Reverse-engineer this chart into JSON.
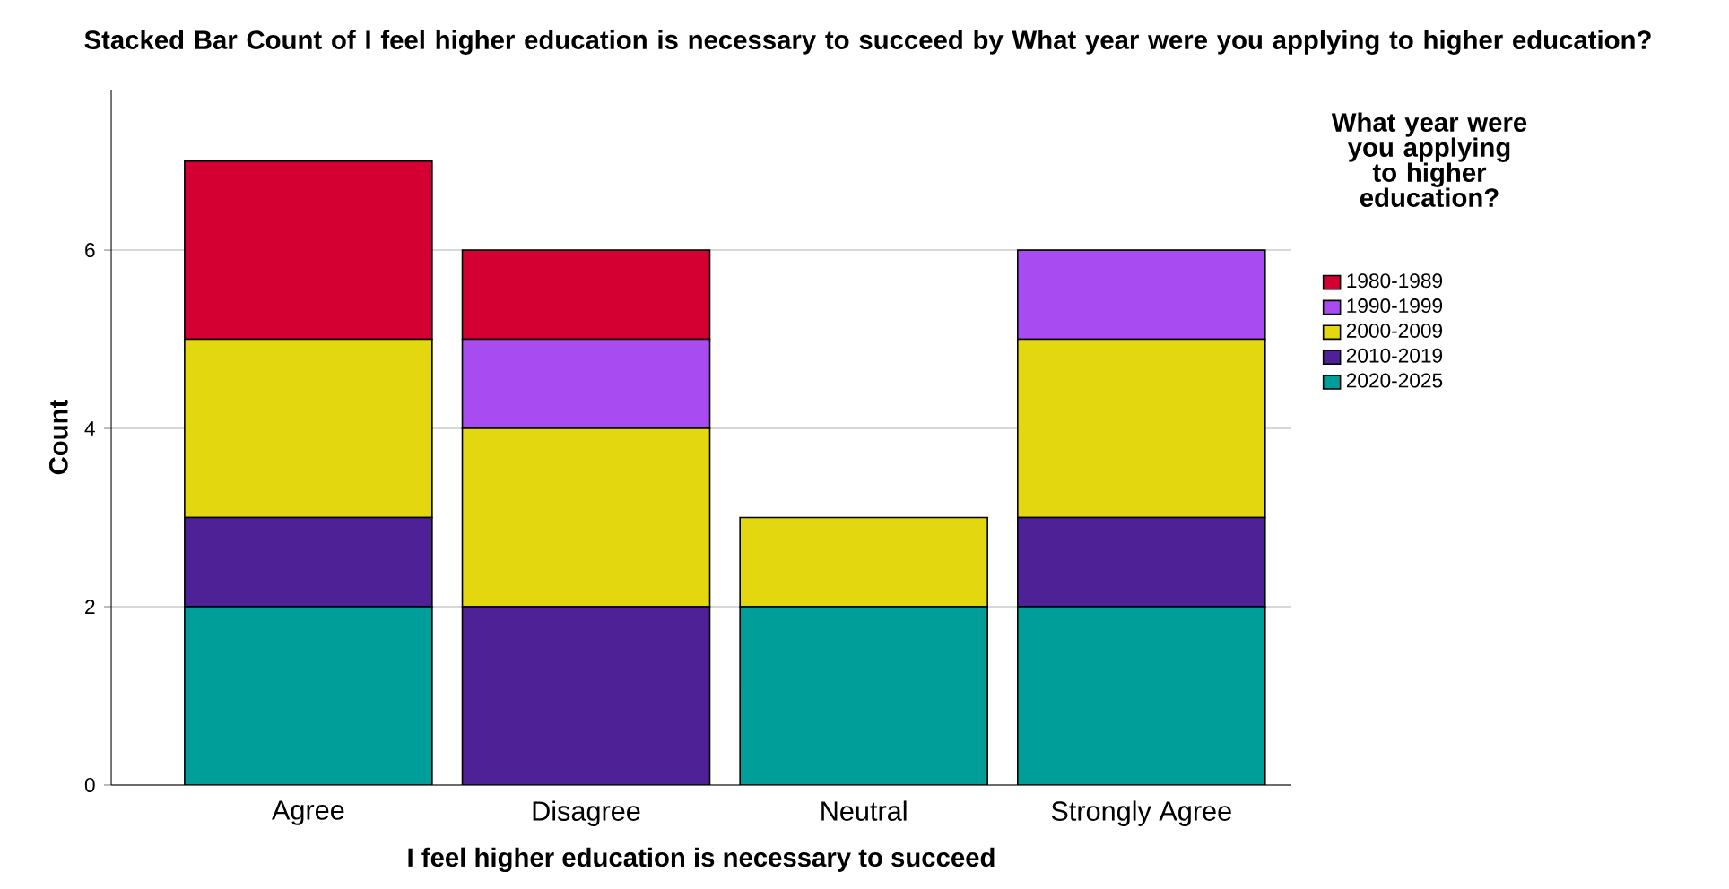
{
  "chart_data": {
    "type": "bar",
    "stacked": true,
    "title": "Stacked Bar Count of I feel higher education is necessary to succeed by What year were you applying to higher education?",
    "xlabel": "I feel higher education is necessary to succeed",
    "ylabel": "Count",
    "legend_title": "What year were you applying to higher education?",
    "categories": [
      "Agree",
      "Disagree",
      "Neutral",
      "Strongly Agree"
    ],
    "series": [
      {
        "name": "2020-2025",
        "color": "#009e99",
        "values": [
          2,
          0,
          2,
          2
        ]
      },
      {
        "name": "2010-2019",
        "color": "#4f2196",
        "values": [
          1,
          2,
          0,
          1
        ]
      },
      {
        "name": "2000-2009",
        "color": "#e3d80f",
        "values": [
          2,
          2,
          1,
          2
        ]
      },
      {
        "name": "1990-1999",
        "color": "#a84bf0",
        "values": [
          0,
          1,
          0,
          1
        ]
      },
      {
        "name": "1980-1989",
        "color": "#d50032",
        "values": [
          2,
          1,
          0,
          0
        ]
      }
    ],
    "ylim": [
      0,
      7.8
    ],
    "yticks": [
      0,
      2,
      4,
      6
    ],
    "grid": "y",
    "legend": "right"
  }
}
